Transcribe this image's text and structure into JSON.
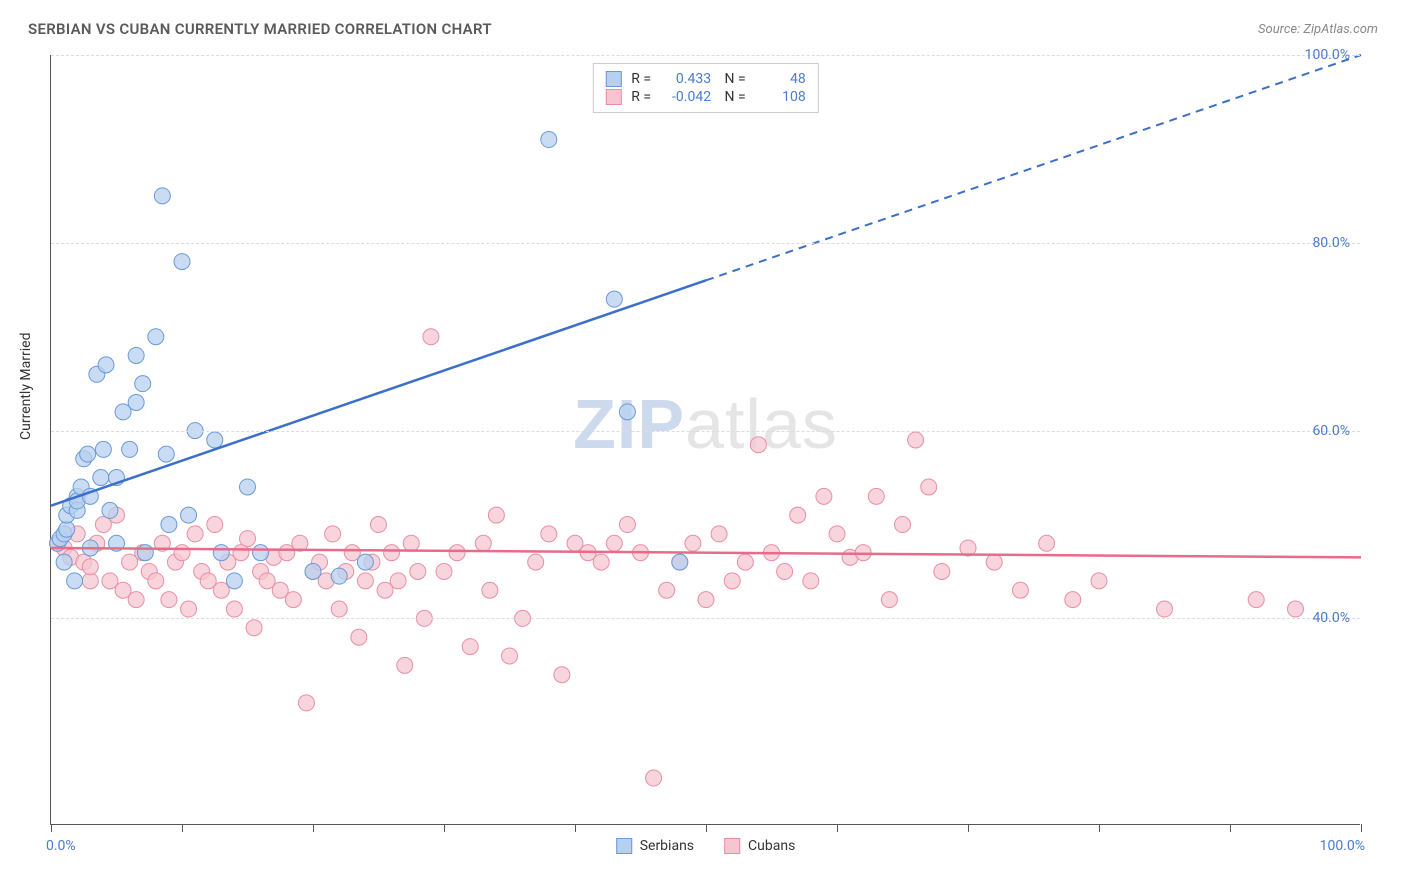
{
  "header": {
    "title": "SERBIAN VS CUBAN CURRENTLY MARRIED CORRELATION CHART",
    "source": "Source: ZipAtlas.com"
  },
  "chart": {
    "type": "scatter",
    "y_axis_label": "Currently Married",
    "xlim": [
      0,
      100
    ],
    "ylim": [
      18,
      100
    ],
    "x_tick_positions": [
      0,
      10,
      20,
      30,
      40,
      50,
      60,
      70,
      80,
      90,
      100
    ],
    "x_tick_labels_shown": {
      "0": "0.0%",
      "100": "100.0%"
    },
    "y_ticks": [
      40,
      60,
      80,
      100
    ],
    "y_tick_labels": [
      "40.0%",
      "60.0%",
      "80.0%",
      "100.0%"
    ],
    "grid_color": "#dcdcdc",
    "background_color": "#ffffff",
    "axis_color": "#555555",
    "label_color": "#4a7bd0",
    "watermark": {
      "text1": "ZIP",
      "text2": "atlas"
    },
    "series": [
      {
        "name": "Serbians",
        "marker_color": "#b7d0ef",
        "marker_stroke": "#6a9ad8",
        "line_color": "#3b6fc9",
        "marker_radius": 8,
        "marker_opacity": 0.75,
        "R": "0.433",
        "N": "48",
        "trend": {
          "x1": 0,
          "y1": 52,
          "x2": 50,
          "y2": 76,
          "extend_x": 100,
          "extend_y": 100,
          "dash_after_x": 50
        },
        "points": [
          [
            0.5,
            48
          ],
          [
            0.7,
            48.5
          ],
          [
            1,
            49
          ],
          [
            1,
            46
          ],
          [
            1.2,
            49.5
          ],
          [
            1.2,
            51
          ],
          [
            1.5,
            52
          ],
          [
            1.8,
            44
          ],
          [
            2,
            53
          ],
          [
            2,
            51.5
          ],
          [
            2,
            52.5
          ],
          [
            2.3,
            54
          ],
          [
            2.5,
            57
          ],
          [
            2.8,
            57.5
          ],
          [
            3,
            53
          ],
          [
            3,
            47.5
          ],
          [
            3.5,
            66
          ],
          [
            3.8,
            55
          ],
          [
            4,
            58
          ],
          [
            4.2,
            67
          ],
          [
            4.5,
            51.5
          ],
          [
            5,
            48
          ],
          [
            5,
            55
          ],
          [
            5.5,
            62
          ],
          [
            6,
            58
          ],
          [
            6.5,
            68
          ],
          [
            6.5,
            63
          ],
          [
            7,
            65
          ],
          [
            7.2,
            47
          ],
          [
            8,
            70
          ],
          [
            8.5,
            85
          ],
          [
            8.8,
            57.5
          ],
          [
            9,
            50
          ],
          [
            10,
            78
          ],
          [
            10.5,
            51
          ],
          [
            11,
            60
          ],
          [
            12.5,
            59
          ],
          [
            13,
            47
          ],
          [
            14,
            44
          ],
          [
            15,
            54
          ],
          [
            16,
            47
          ],
          [
            20,
            45
          ],
          [
            22,
            44.5
          ],
          [
            24,
            46
          ],
          [
            38,
            91
          ],
          [
            43,
            74
          ],
          [
            44,
            62
          ],
          [
            48,
            46
          ]
        ]
      },
      {
        "name": "Cubans",
        "marker_color": "#f6c6d0",
        "marker_stroke": "#e98fa5",
        "line_color": "#e76b8a",
        "marker_radius": 8,
        "marker_opacity": 0.75,
        "R": "-0.042",
        "N": "108",
        "trend": {
          "x1": 0,
          "y1": 47.5,
          "x2": 100,
          "y2": 46.5
        },
        "points": [
          [
            0.5,
            48
          ],
          [
            1,
            47.5
          ],
          [
            1.5,
            46.5
          ],
          [
            2,
            49
          ],
          [
            2.5,
            46
          ],
          [
            3,
            44
          ],
          [
            3,
            45.5
          ],
          [
            3.5,
            48
          ],
          [
            4,
            50
          ],
          [
            4.5,
            44
          ],
          [
            5,
            51
          ],
          [
            5.5,
            43
          ],
          [
            6,
            46
          ],
          [
            6.5,
            42
          ],
          [
            7,
            47
          ],
          [
            7.5,
            45
          ],
          [
            8,
            44
          ],
          [
            8.5,
            48
          ],
          [
            9,
            42
          ],
          [
            9.5,
            46
          ],
          [
            10,
            47
          ],
          [
            10.5,
            41
          ],
          [
            11,
            49
          ],
          [
            11.5,
            45
          ],
          [
            12,
            44
          ],
          [
            12.5,
            50
          ],
          [
            13,
            43
          ],
          [
            13.5,
            46
          ],
          [
            14,
            41
          ],
          [
            14.5,
            47
          ],
          [
            15,
            48.5
          ],
          [
            15.5,
            39
          ],
          [
            16,
            45
          ],
          [
            16.5,
            44
          ],
          [
            17,
            46.5
          ],
          [
            17.5,
            43
          ],
          [
            18,
            47
          ],
          [
            18.5,
            42
          ],
          [
            19,
            48
          ],
          [
            19.5,
            31
          ],
          [
            20,
            45
          ],
          [
            20.5,
            46
          ],
          [
            21,
            44
          ],
          [
            21.5,
            49
          ],
          [
            22,
            41
          ],
          [
            22.5,
            45
          ],
          [
            23,
            47
          ],
          [
            23.5,
            38
          ],
          [
            24,
            44
          ],
          [
            24.5,
            46
          ],
          [
            25,
            50
          ],
          [
            25.5,
            43
          ],
          [
            26,
            47
          ],
          [
            26.5,
            44
          ],
          [
            27,
            35
          ],
          [
            27.5,
            48
          ],
          [
            28,
            45
          ],
          [
            28.5,
            40
          ],
          [
            29,
            70
          ],
          [
            30,
            45
          ],
          [
            31,
            47
          ],
          [
            32,
            37
          ],
          [
            33,
            48
          ],
          [
            33.5,
            43
          ],
          [
            34,
            51
          ],
          [
            35,
            36
          ],
          [
            36,
            40
          ],
          [
            37,
            46
          ],
          [
            38,
            49
          ],
          [
            39,
            34
          ],
          [
            40,
            48
          ],
          [
            41,
            47
          ],
          [
            42,
            46
          ],
          [
            43,
            48
          ],
          [
            44,
            50
          ],
          [
            45,
            47
          ],
          [
            46,
            23
          ],
          [
            47,
            43
          ],
          [
            48,
            46
          ],
          [
            49,
            48
          ],
          [
            50,
            42
          ],
          [
            51,
            49
          ],
          [
            52,
            44
          ],
          [
            53,
            46
          ],
          [
            54,
            58.5
          ],
          [
            55,
            47
          ],
          [
            56,
            45
          ],
          [
            57,
            51
          ],
          [
            58,
            44
          ],
          [
            59,
            53
          ],
          [
            60,
            49
          ],
          [
            61,
            46.5
          ],
          [
            62,
            47
          ],
          [
            63,
            53
          ],
          [
            64,
            42
          ],
          [
            65,
            50
          ],
          [
            66,
            59
          ],
          [
            67,
            54
          ],
          [
            68,
            45
          ],
          [
            70,
            47.5
          ],
          [
            72,
            46
          ],
          [
            74,
            43
          ],
          [
            76,
            48
          ],
          [
            78,
            42
          ],
          [
            80,
            44
          ],
          [
            85,
            41
          ],
          [
            92,
            42
          ],
          [
            95,
            41
          ]
        ]
      }
    ]
  },
  "legend": {
    "bottom": [
      {
        "label": "Serbians",
        "fill": "#b7d0ef",
        "stroke": "#6a9ad8"
      },
      {
        "label": "Cubans",
        "fill": "#f6c6d0",
        "stroke": "#e98fa5"
      }
    ]
  }
}
